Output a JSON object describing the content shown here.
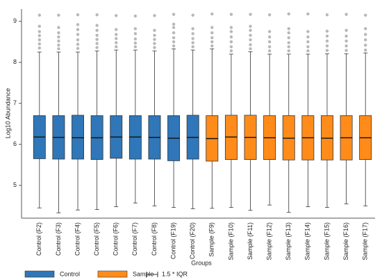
{
  "chart_data": {
    "type": "box",
    "y_label": "Log10 Abundance",
    "x_label": "Groups",
    "whisker_legend": "1.5 * IQR",
    "ylim": [
      4.2,
      9.3
    ],
    "yticks": [
      5,
      6,
      7,
      8,
      9
    ],
    "series": [
      {
        "name": "Control",
        "color": "#2f77b8",
        "categories": [
          "Control (F2)",
          "Control (F3)",
          "Control (F4)",
          "Control (F5)",
          "Control (F6)",
          "Control (F7)",
          "Control (F8)",
          "Control (F19)",
          "Control (F20)"
        ],
        "low": [
          4.45,
          4.33,
          4.4,
          4.41,
          4.48,
          4.57,
          4.5,
          4.46,
          4.43
        ],
        "q1": [
          5.65,
          5.64,
          5.64,
          5.63,
          5.66,
          5.64,
          5.64,
          5.6,
          5.64
        ],
        "median": [
          6.18,
          6.17,
          6.16,
          6.16,
          6.18,
          6.18,
          6.17,
          6.15,
          6.17
        ],
        "q3": [
          6.7,
          6.7,
          6.71,
          6.7,
          6.7,
          6.7,
          6.7,
          6.7,
          6.71
        ],
        "high": [
          8.25,
          8.25,
          8.25,
          8.28,
          8.3,
          8.3,
          8.28,
          8.33,
          8.3
        ],
        "outliers": [
          [
            8.35,
            8.45,
            8.55,
            8.65,
            8.75,
            8.88,
            9.15
          ],
          [
            8.33,
            8.42,
            8.52,
            8.62,
            8.72,
            8.85,
            9.15
          ],
          [
            8.34,
            8.44,
            8.55,
            8.68,
            8.8,
            8.92,
            9.16
          ],
          [
            8.36,
            8.46,
            8.56,
            8.66,
            8.78,
            8.9,
            9.16
          ],
          [
            8.38,
            8.48,
            8.58,
            8.68,
            8.8,
            9.14
          ],
          [
            8.38,
            8.47,
            8.57,
            8.7,
            8.82,
            9.13
          ],
          [
            8.36,
            8.46,
            8.56,
            8.66,
            8.78,
            9.14
          ],
          [
            8.4,
            8.5,
            8.6,
            8.72,
            8.85,
            8.93,
            9.17
          ],
          [
            8.38,
            8.48,
            8.58,
            8.7,
            8.82,
            9.15
          ]
        ]
      },
      {
        "name": "Sample",
        "color": "#ff8c1a",
        "categories": [
          "Sample (F9)",
          "Sample (F10)",
          "Sample (F11)",
          "Sample (F12)",
          "Sample (F13)",
          "Sample (F14)",
          "Sample (F15)",
          "Sample (F16)",
          "Sample (F17)"
        ],
        "low": [
          4.44,
          4.46,
          4.39,
          4.52,
          4.34,
          4.48,
          4.46,
          4.55,
          4.5
        ],
        "q1": [
          5.59,
          5.63,
          5.63,
          5.63,
          5.62,
          5.62,
          5.62,
          5.62,
          5.63
        ],
        "median": [
          6.14,
          6.18,
          6.17,
          6.16,
          6.15,
          6.16,
          6.15,
          6.16,
          6.16
        ],
        "q3": [
          6.7,
          6.71,
          6.71,
          6.7,
          6.7,
          6.7,
          6.7,
          6.7,
          6.7
        ],
        "high": [
          8.33,
          8.2,
          8.26,
          8.2,
          8.2,
          8.2,
          8.21,
          8.21,
          8.23
        ],
        "outliers": [
          [
            8.4,
            8.5,
            8.6,
            8.72,
            8.85,
            9.18
          ],
          [
            8.28,
            8.38,
            8.5,
            8.62,
            8.75,
            8.85,
            9.17
          ],
          [
            8.33,
            8.43,
            8.55,
            8.66,
            8.78,
            8.88,
            9.17
          ],
          [
            8.28,
            8.38,
            8.5,
            8.62,
            8.75,
            9.16
          ],
          [
            8.28,
            8.38,
            8.48,
            8.6,
            8.72,
            8.82,
            9.18
          ],
          [
            8.28,
            8.38,
            8.5,
            8.62,
            8.75,
            9.18
          ],
          [
            8.29,
            8.4,
            8.52,
            8.64,
            8.76,
            9.16
          ],
          [
            8.29,
            8.4,
            8.52,
            8.64,
            8.78,
            9.17
          ],
          [
            8.3,
            8.42,
            8.55,
            8.68,
            8.82,
            9.15
          ]
        ]
      }
    ]
  }
}
